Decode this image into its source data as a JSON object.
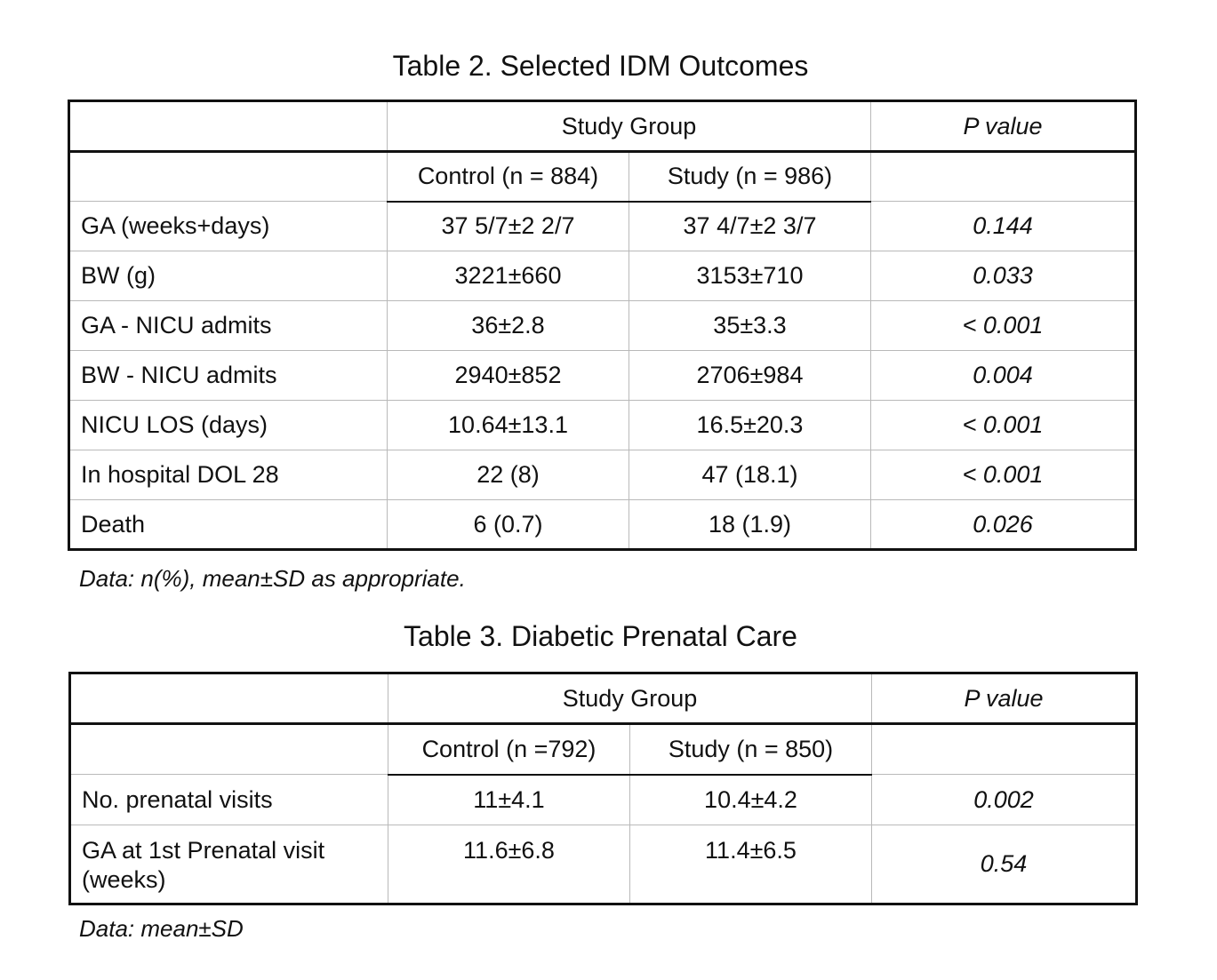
{
  "table2": {
    "title": "Table 2. Selected IDM Outcomes",
    "header_group": "Study Group",
    "header_p": "P value",
    "col_control": "Control (n = 884)",
    "col_study": "Study (n = 986)",
    "rows": [
      {
        "label": "GA (weeks+days)",
        "control": "37 5/7±2 2/7",
        "study": "37 4/7±2 3/7",
        "p": "0.144"
      },
      {
        "label": "BW (g)",
        "control": "3221±660",
        "study": "3153±710",
        "p": "0.033"
      },
      {
        "label": "GA - NICU admits",
        "control": "36±2.8",
        "study": "35±3.3",
        "p": "< 0.001"
      },
      {
        "label": "BW - NICU admits",
        "control": "2940±852",
        "study": "2706±984",
        "p": "0.004"
      },
      {
        "label": "NICU LOS (days)",
        "control": "10.64±13.1",
        "study": "16.5±20.3",
        "p": "< 0.001"
      },
      {
        "label": "In hospital DOL 28",
        "control": "22 (8)",
        "study": "47 (18.1)",
        "p": "< 0.001"
      },
      {
        "label": "Death",
        "control": "6 (0.7)",
        "study": "18 (1.9)",
        "p": "0.026"
      }
    ],
    "note": "Data: n(%), mean±SD as appropriate."
  },
  "table3": {
    "title": "Table 3. Diabetic Prenatal Care",
    "header_group": "Study Group",
    "header_p": "P value",
    "col_control": "Control (n =792)",
    "col_study": "Study (n = 850)",
    "rows": [
      {
        "label": "No. prenatal visits",
        "control": "11±4.1",
        "study": "10.4±4.2",
        "p": "0.002"
      },
      {
        "label": "GA at 1st Prenatal visit (weeks)",
        "control": "11.6±6.8",
        "study": "11.4±6.5",
        "p": "0.54"
      }
    ],
    "note": "Data: mean±SD"
  }
}
